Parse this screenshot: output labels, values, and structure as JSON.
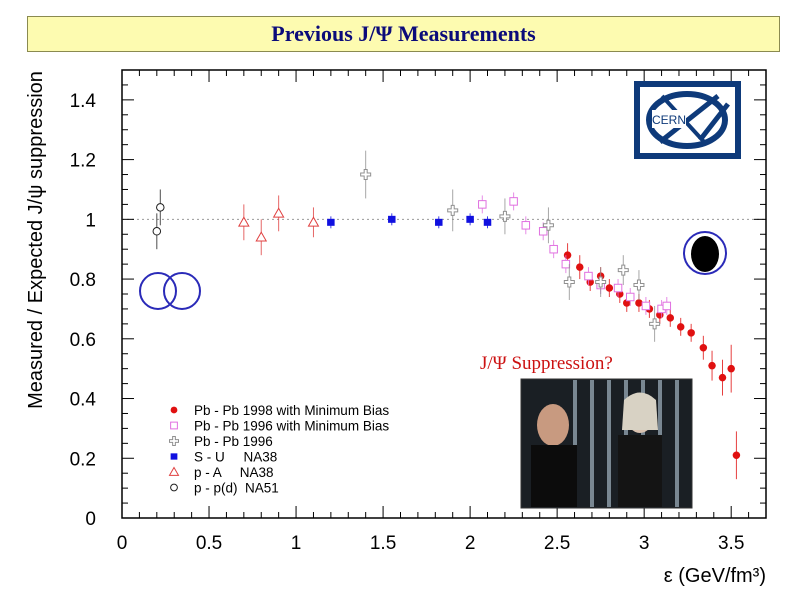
{
  "title": "Previous J/Ψ Measurements",
  "annotation": "J/Ψ Suppression?",
  "logo": {
    "text": "CERN",
    "color": "#0e3a7a"
  },
  "photo": {
    "description_icon": "photo-two-people-behind-bars-icon"
  },
  "chart_data": {
    "type": "scatter",
    "xlabel": "ε  (GeV/fm³)",
    "ylabel": "Measured / Expected  J/ψ suppression",
    "xlim": [
      0,
      3.7
    ],
    "ylim": [
      0,
      1.5
    ],
    "xticks": [
      0,
      0.5,
      1,
      1.5,
      2,
      2.5,
      3,
      3.5
    ],
    "xtick_labels": [
      "0",
      "0.5",
      "1",
      "1.5",
      "2",
      "2.5",
      "3",
      "3.5"
    ],
    "yticks": [
      0,
      0.2,
      0.4,
      0.6,
      0.8,
      1,
      1.2,
      1.4
    ],
    "ytick_labels": [
      "0",
      "0.2",
      "0.4",
      "0.6",
      "0.8",
      "1",
      "1.2",
      "1.4"
    ],
    "reference_line": 1.0,
    "series": [
      {
        "name": "Pb - Pb 1998 with Minimum Bias",
        "marker": "filled-circle",
        "color": "#e01010",
        "points": [
          [
            2.56,
            0.88,
            0.04
          ],
          [
            2.63,
            0.84,
            0.04
          ],
          [
            2.69,
            0.79,
            0.03
          ],
          [
            2.75,
            0.81,
            0.03
          ],
          [
            2.8,
            0.77,
            0.03
          ],
          [
            2.86,
            0.75,
            0.03
          ],
          [
            2.9,
            0.72,
            0.03
          ],
          [
            2.97,
            0.72,
            0.03
          ],
          [
            3.03,
            0.7,
            0.03
          ],
          [
            3.09,
            0.68,
            0.03
          ],
          [
            3.15,
            0.67,
            0.03
          ],
          [
            3.21,
            0.64,
            0.03
          ],
          [
            3.27,
            0.62,
            0.03
          ],
          [
            3.34,
            0.57,
            0.04
          ],
          [
            3.39,
            0.51,
            0.05
          ],
          [
            3.45,
            0.47,
            0.06
          ],
          [
            3.5,
            0.5,
            0.08
          ],
          [
            3.53,
            0.21,
            0.08
          ]
        ]
      },
      {
        "name": "Pb - Pb 1996 with Minimum Bias",
        "marker": "open-square",
        "color": "#e070e0",
        "points": [
          [
            2.07,
            1.05,
            0.03
          ],
          [
            2.25,
            1.06,
            0.03
          ],
          [
            2.32,
            0.98,
            0.03
          ],
          [
            2.42,
            0.96,
            0.03
          ],
          [
            2.48,
            0.9,
            0.03
          ],
          [
            2.55,
            0.85,
            0.03
          ],
          [
            2.68,
            0.81,
            0.03
          ],
          [
            2.75,
            0.78,
            0.03
          ],
          [
            2.85,
            0.77,
            0.03
          ],
          [
            2.92,
            0.74,
            0.03
          ],
          [
            3.01,
            0.71,
            0.03
          ],
          [
            3.1,
            0.7,
            0.03
          ],
          [
            3.13,
            0.71,
            0.03
          ]
        ]
      },
      {
        "name": "Pb - Pb 1996",
        "marker": "open-cross",
        "color": "#909090",
        "points": [
          [
            1.4,
            1.15,
            0.08
          ],
          [
            1.9,
            1.03,
            0.07
          ],
          [
            2.2,
            1.01,
            0.06
          ],
          [
            2.45,
            0.98,
            0.06
          ],
          [
            2.57,
            0.79,
            0.06
          ],
          [
            2.75,
            0.79,
            0.05
          ],
          [
            2.88,
            0.83,
            0.05
          ],
          [
            2.97,
            0.78,
            0.05
          ],
          [
            3.06,
            0.65,
            0.06
          ]
        ]
      },
      {
        "name": "S - U     NA38",
        "marker": "filled-square",
        "color": "#1010e0",
        "points": [
          [
            1.2,
            0.99,
            0.02
          ],
          [
            1.55,
            1.0,
            0.02
          ],
          [
            1.82,
            0.99,
            0.02
          ],
          [
            2.0,
            1.0,
            0.02
          ],
          [
            2.1,
            0.99,
            0.02
          ]
        ]
      },
      {
        "name": "p - A     NA38",
        "marker": "open-triangle",
        "color": "#e04040",
        "points": [
          [
            0.7,
            0.99,
            0.06
          ],
          [
            0.8,
            0.94,
            0.06
          ],
          [
            0.9,
            1.02,
            0.06
          ],
          [
            1.1,
            0.99,
            0.05
          ]
        ]
      },
      {
        "name": "p - p(d)  NA51",
        "marker": "open-circle",
        "color": "#202020",
        "points": [
          [
            0.2,
            0.96,
            0.06
          ],
          [
            0.22,
            1.04,
            0.06
          ]
        ]
      }
    ]
  }
}
